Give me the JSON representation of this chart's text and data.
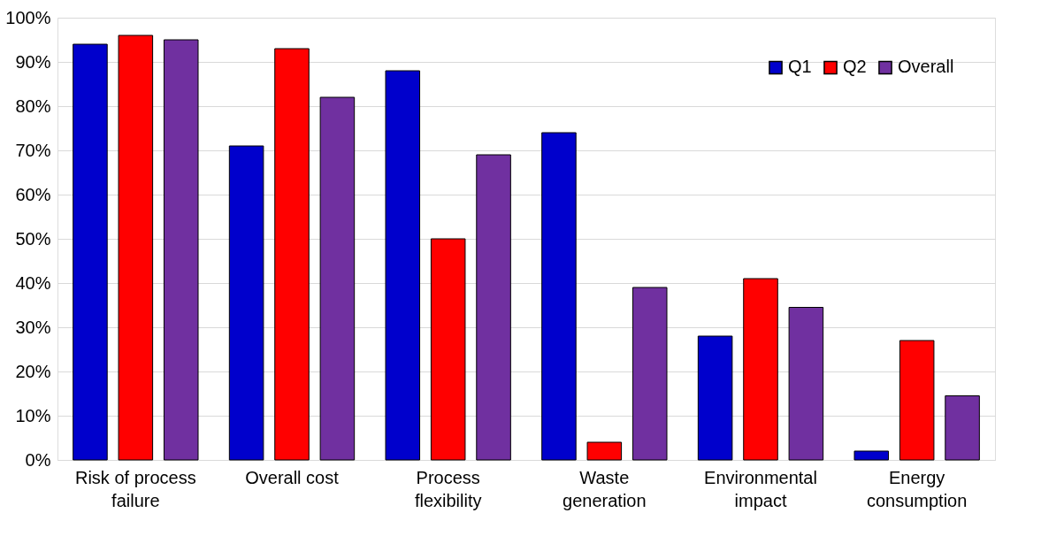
{
  "chart_data": {
    "type": "bar",
    "categories": [
      "Risk of process failure",
      "Overall cost",
      "Process flexibility",
      "Waste generation",
      "Environmental impact",
      "Energy consumption"
    ],
    "series": [
      {
        "name": "Q1",
        "color": "#0000cc",
        "values": [
          94,
          71,
          88,
          74,
          28,
          2
        ]
      },
      {
        "name": "Q2",
        "color": "#ff0000",
        "values": [
          96,
          93,
          50,
          4,
          41,
          27
        ]
      },
      {
        "name": "Overall",
        "color": "#7030a0",
        "values": [
          95,
          82,
          69,
          39,
          34.5,
          14.5
        ]
      }
    ],
    "ylim": [
      0,
      100
    ],
    "yticks": [
      {
        "value": 0,
        "label": "0%"
      },
      {
        "value": 10,
        "label": "10%"
      },
      {
        "value": 20,
        "label": "20%"
      },
      {
        "value": 30,
        "label": "30%"
      },
      {
        "value": 40,
        "label": "40%"
      },
      {
        "value": 50,
        "label": "50%"
      },
      {
        "value": 60,
        "label": "60%"
      },
      {
        "value": 70,
        "label": "70%"
      },
      {
        "value": 80,
        "label": "80%"
      },
      {
        "value": 90,
        "label": "90%"
      },
      {
        "value": 100,
        "label": "100%"
      }
    ],
    "grid": "y",
    "legend": "top right"
  }
}
